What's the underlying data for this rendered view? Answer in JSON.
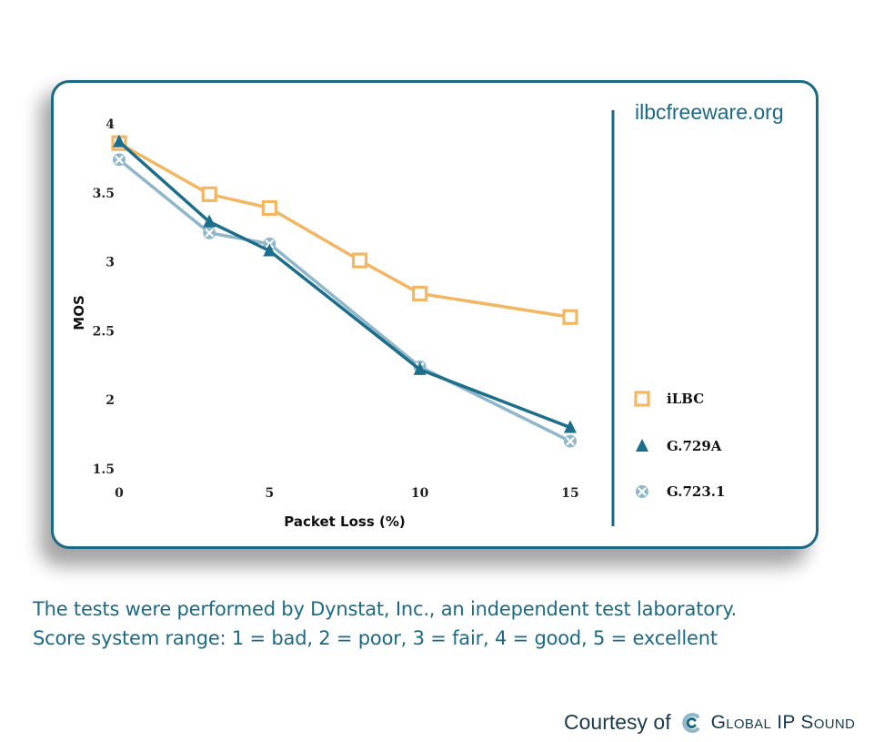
{
  "site_label": "ilbcfreeware.org",
  "caption": {
    "line1": "The tests were performed by Dynstat, Inc., an independent test laboratory.",
    "line2": "Score system range: 1 = bad, 2 = poor, 3 = fair, 4 = good, 5 = excellent"
  },
  "courtesy": {
    "prefix": "Courtesy of",
    "brand": "Global IP Sound",
    "logo_icon": "swirl-logo-icon"
  },
  "colors": {
    "frame": "#1a6a86",
    "ilbc": "#f2b763",
    "g729a": "#1d6e8a",
    "g7231": "#8fb6c9"
  },
  "chart_data": {
    "type": "line",
    "title": "",
    "xlabel": "Packet Loss (%)",
    "ylabel": "MOS",
    "xlim": [
      0,
      15
    ],
    "ylim": [
      1.5,
      4
    ],
    "x_ticks": [
      "0",
      "5",
      "10",
      "15"
    ],
    "y_ticks": [
      "1.5",
      "2",
      "2.5",
      "3",
      "3.5",
      "4"
    ],
    "grid": false,
    "legend_position": "right",
    "series": [
      {
        "name": "iLBC",
        "marker": "square",
        "color": "#f2b763",
        "x": [
          0,
          3,
          5,
          8,
          10,
          15
        ],
        "y": [
          3.86,
          3.49,
          3.39,
          3.01,
          2.77,
          2.6
        ]
      },
      {
        "name": "G.729A",
        "marker": "triangle",
        "color": "#1d6e8a",
        "x": [
          0,
          3,
          5,
          10,
          15
        ],
        "y": [
          3.87,
          3.29,
          3.08,
          2.22,
          1.8
        ]
      },
      {
        "name": "G.723.1",
        "marker": "cross",
        "color": "#8fb6c9",
        "x": [
          0,
          3,
          5,
          10,
          15
        ],
        "y": [
          3.74,
          3.21,
          3.13,
          2.24,
          1.7
        ]
      }
    ]
  }
}
